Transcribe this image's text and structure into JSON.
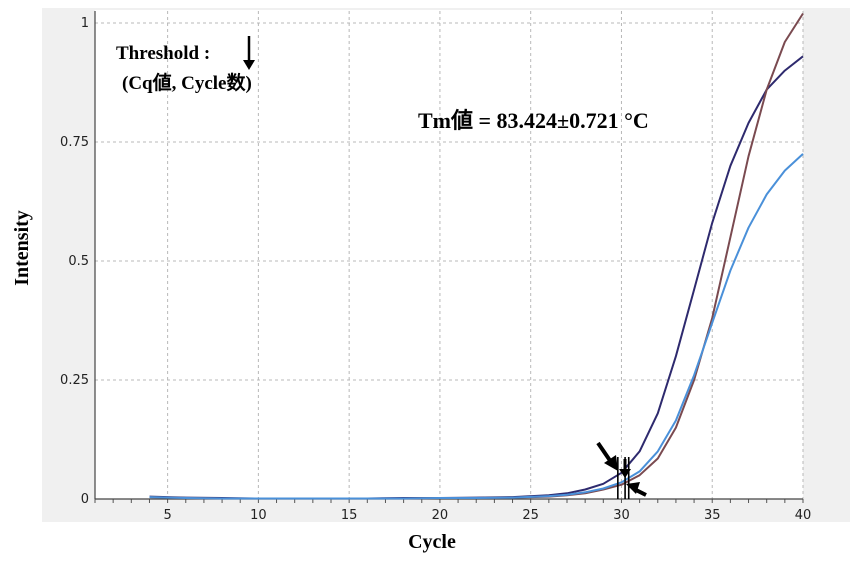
{
  "annotations": {
    "threshold_line1": "Threshold :",
    "threshold_line2": "(Cq値, Cycle数)",
    "tm_label": "Tm値 = 83.424±0.721 °C"
  },
  "chart_data": {
    "type": "line",
    "title": "",
    "xlabel": "Cycle",
    "ylabel": "Intensity",
    "xlim": [
      1,
      40
    ],
    "ylim": [
      0,
      1
    ],
    "x_ticks": [
      5,
      10,
      15,
      20,
      25,
      30,
      35,
      40
    ],
    "y_ticks": [
      0,
      0.25,
      0.5,
      0.75,
      1
    ],
    "x_tick_labels": [
      "5",
      "10",
      "15",
      "20",
      "25",
      "30",
      "35",
      "40"
    ],
    "y_tick_labels": [
      "0",
      "0.25",
      "0.5",
      "0.75",
      "1"
    ],
    "grid": true,
    "threshold_cycles": [
      29.8,
      30.2,
      30.4
    ],
    "series": [
      {
        "color": "#2e2a6e",
        "x": [
          4,
          6,
          8,
          10,
          12,
          14,
          16,
          18,
          20,
          22,
          24,
          26,
          27,
          28,
          29,
          30,
          31,
          32,
          33,
          34,
          35,
          36,
          37,
          38,
          39,
          40
        ],
        "y": [
          0.005,
          0.003,
          0.002,
          0.001,
          0.001,
          0.001,
          0.001,
          0.002,
          0.002,
          0.003,
          0.004,
          0.008,
          0.012,
          0.02,
          0.032,
          0.055,
          0.1,
          0.18,
          0.3,
          0.44,
          0.58,
          0.7,
          0.79,
          0.86,
          0.9,
          0.93
        ]
      },
      {
        "color": "#7a4a50",
        "x": [
          4,
          6,
          8,
          10,
          12,
          14,
          16,
          18,
          20,
          22,
          24,
          26,
          27,
          28,
          29,
          30,
          31,
          32,
          33,
          34,
          35,
          36,
          37,
          38,
          39,
          40
        ],
        "y": [
          0.004,
          0.002,
          0.001,
          0.001,
          0.001,
          0.001,
          0.001,
          0.001,
          0.002,
          0.002,
          0.003,
          0.005,
          0.008,
          0.012,
          0.02,
          0.03,
          0.05,
          0.085,
          0.15,
          0.25,
          0.38,
          0.55,
          0.72,
          0.86,
          0.96,
          1.02
        ]
      },
      {
        "color": "#4a90d9",
        "x": [
          4,
          6,
          8,
          10,
          12,
          14,
          16,
          18,
          20,
          22,
          24,
          26,
          27,
          28,
          29,
          30,
          31,
          32,
          33,
          34,
          35,
          36,
          37,
          38,
          39,
          40
        ],
        "y": [
          0.004,
          0.002,
          0.001,
          0.001,
          0.001,
          0.001,
          0.001,
          0.001,
          0.002,
          0.002,
          0.003,
          0.006,
          0.009,
          0.014,
          0.022,
          0.035,
          0.058,
          0.1,
          0.165,
          0.26,
          0.37,
          0.48,
          0.57,
          0.64,
          0.69,
          0.725
        ]
      }
    ]
  }
}
